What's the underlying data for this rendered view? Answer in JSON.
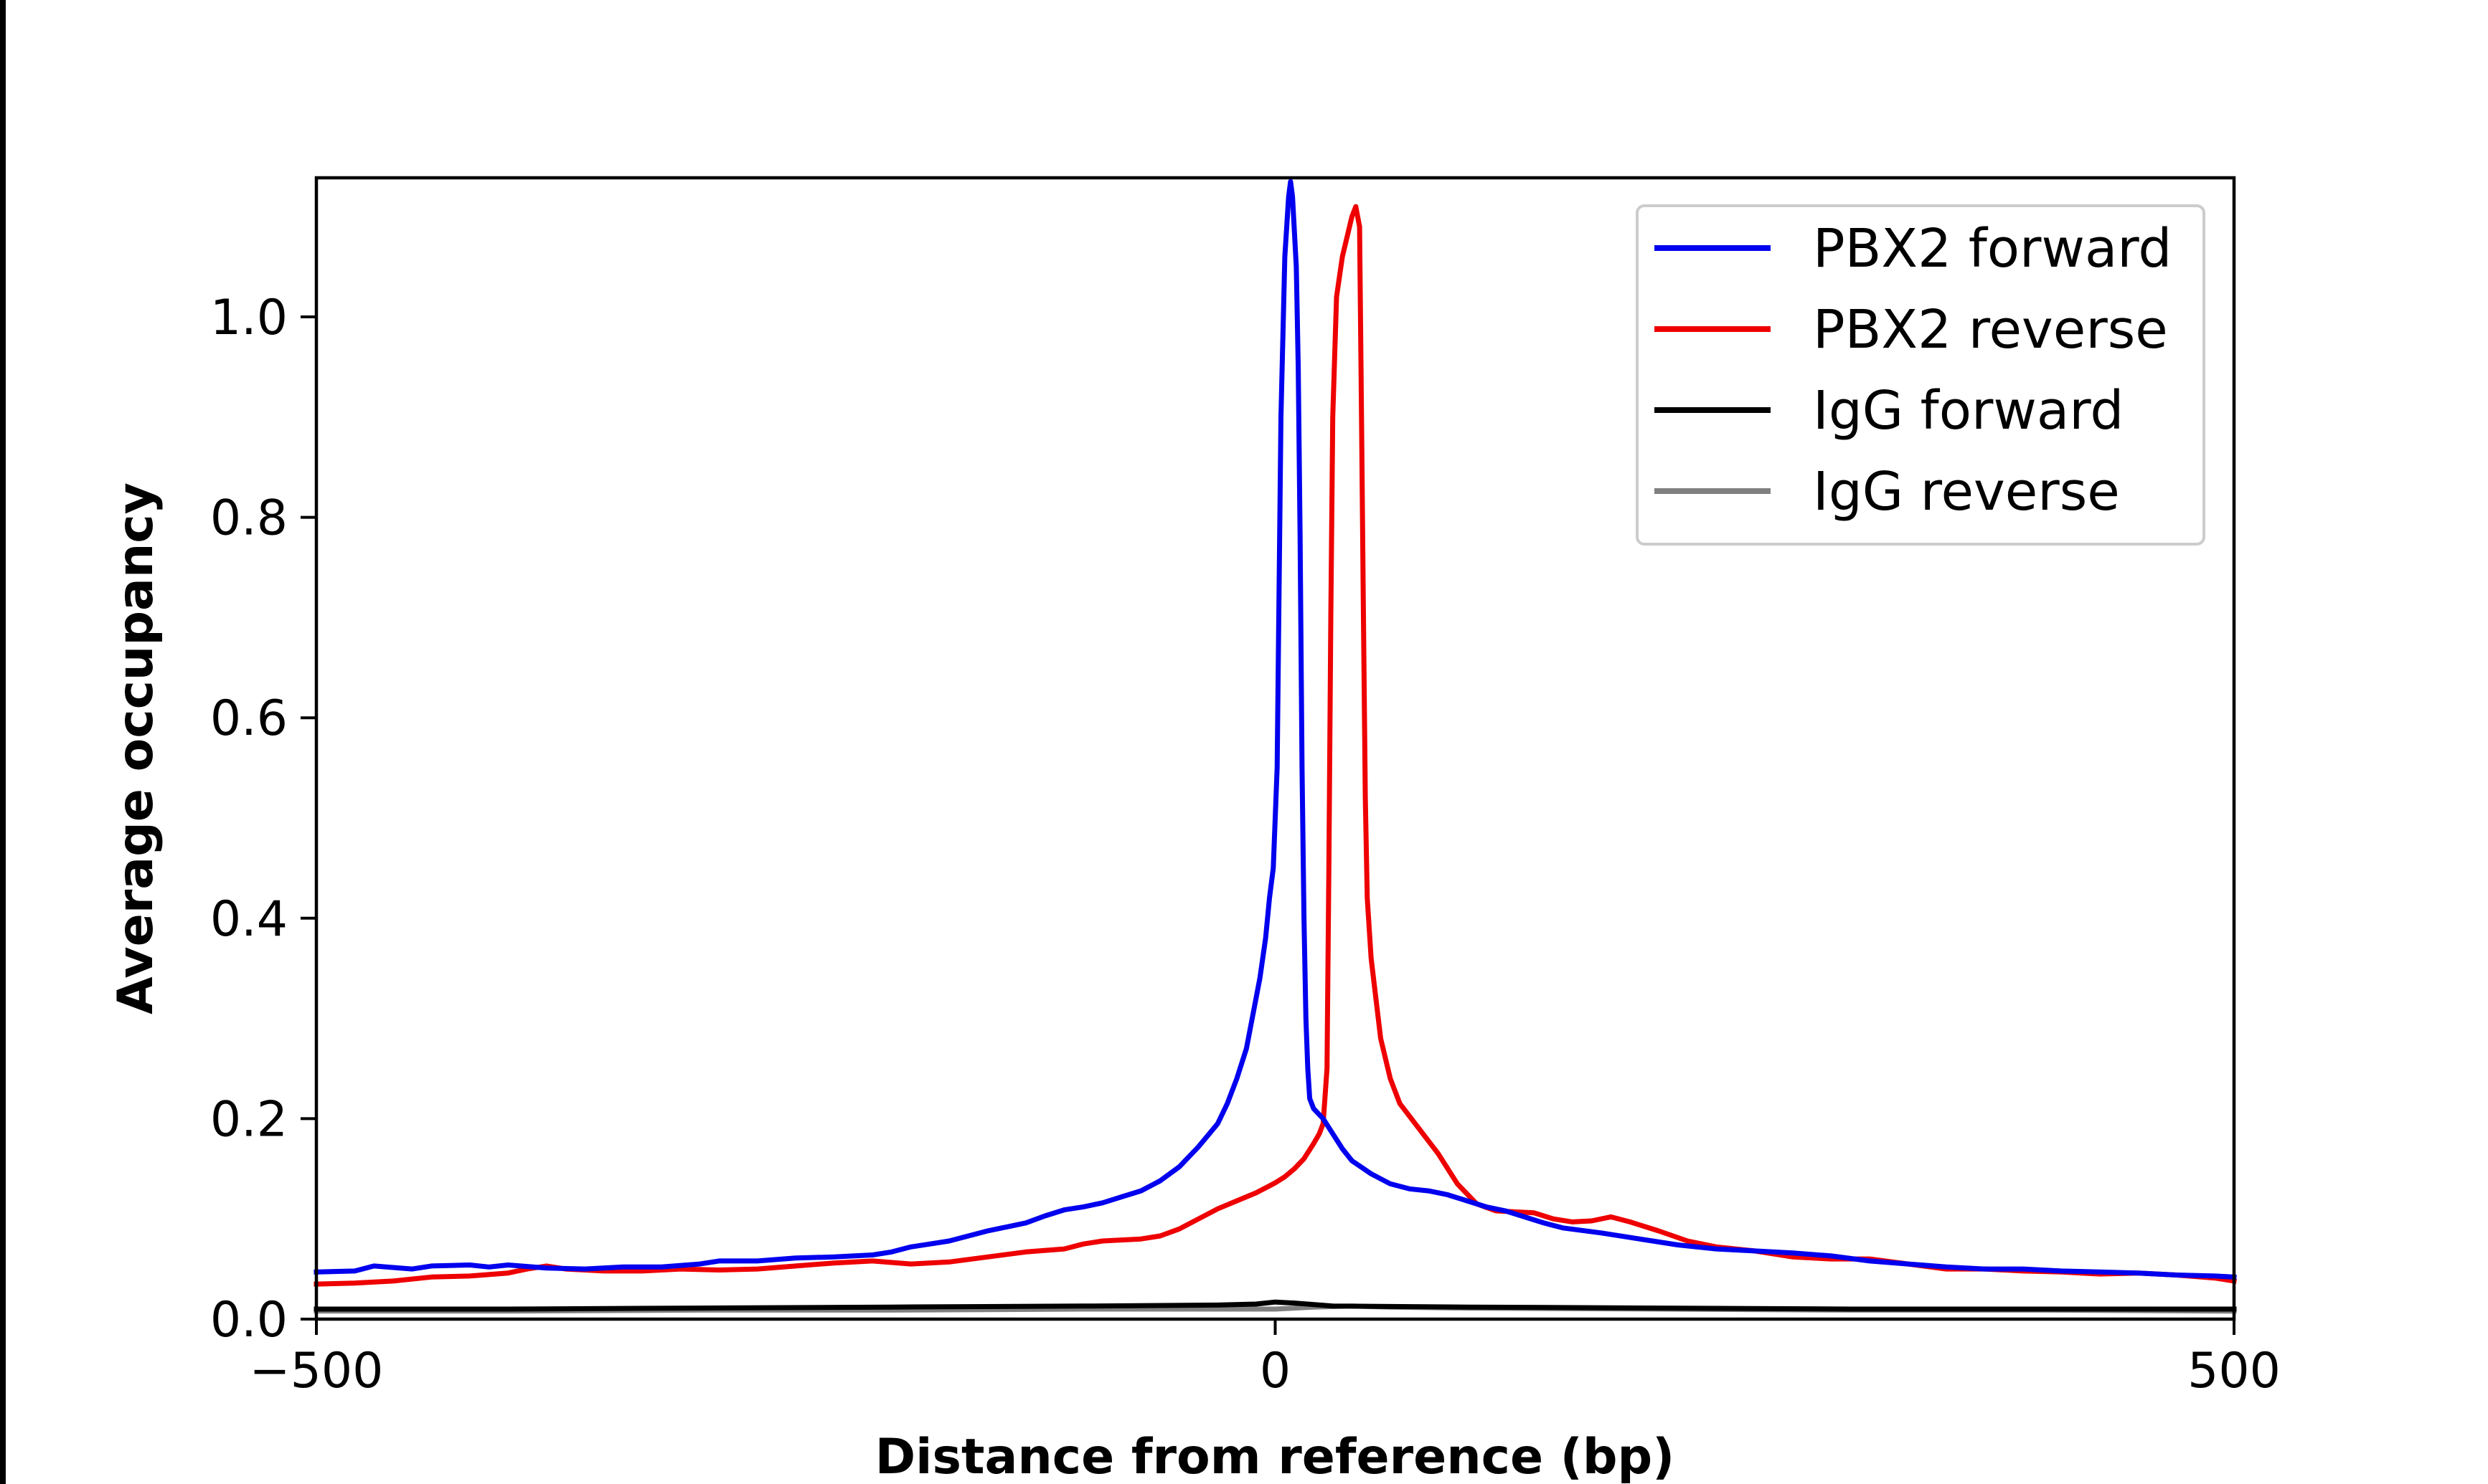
{
  "chart_data": {
    "type": "line",
    "title": "",
    "xlabel": "Distance from reference (bp)",
    "ylabel": "Average occupancy",
    "xlim": [
      -500,
      500
    ],
    "ylim": [
      0.0,
      1.13
    ],
    "xticks": [
      -500,
      0,
      500
    ],
    "xtick_labels": [
      "−500",
      "0",
      "500"
    ],
    "yticks": [
      0.0,
      0.2,
      0.4,
      0.6,
      0.8,
      1.0
    ],
    "ytick_labels": [
      "0.0",
      "0.2",
      "0.4",
      "0.6",
      "0.8",
      "1.0"
    ],
    "grid": false,
    "legend_position": "top-right",
    "series": [
      {
        "name": "PBX2 forward",
        "color": "#0000ee",
        "points": [
          [
            -500,
            0.047
          ],
          [
            -480,
            0.048
          ],
          [
            -470,
            0.053
          ],
          [
            -450,
            0.05
          ],
          [
            -440,
            0.053
          ],
          [
            -420,
            0.054
          ],
          [
            -410,
            0.052
          ],
          [
            -400,
            0.054
          ],
          [
            -380,
            0.051
          ],
          [
            -360,
            0.05
          ],
          [
            -340,
            0.052
          ],
          [
            -320,
            0.052
          ],
          [
            -300,
            0.055
          ],
          [
            -290,
            0.058
          ],
          [
            -270,
            0.058
          ],
          [
            -250,
            0.061
          ],
          [
            -230,
            0.062
          ],
          [
            -210,
            0.064
          ],
          [
            -200,
            0.067
          ],
          [
            -190,
            0.072
          ],
          [
            -180,
            0.075
          ],
          [
            -170,
            0.078
          ],
          [
            -160,
            0.083
          ],
          [
            -150,
            0.088
          ],
          [
            -140,
            0.092
          ],
          [
            -130,
            0.096
          ],
          [
            -120,
            0.103
          ],
          [
            -110,
            0.109
          ],
          [
            -100,
            0.112
          ],
          [
            -90,
            0.116
          ],
          [
            -80,
            0.122
          ],
          [
            -70,
            0.128
          ],
          [
            -60,
            0.138
          ],
          [
            -50,
            0.152
          ],
          [
            -40,
            0.172
          ],
          [
            -30,
            0.195
          ],
          [
            -25,
            0.215
          ],
          [
            -20,
            0.24
          ],
          [
            -15,
            0.27
          ],
          [
            -12,
            0.3
          ],
          [
            -8,
            0.34
          ],
          [
            -5,
            0.38
          ],
          [
            -3,
            0.42
          ],
          [
            -1,
            0.45
          ],
          [
            1,
            0.55
          ],
          [
            3,
            0.9
          ],
          [
            5,
            1.06
          ],
          [
            7,
            1.12
          ],
          [
            8,
            1.135
          ],
          [
            9,
            1.12
          ],
          [
            11,
            1.05
          ],
          [
            12,
            0.95
          ],
          [
            13,
            0.78
          ],
          [
            14,
            0.55
          ],
          [
            15,
            0.4
          ],
          [
            16,
            0.3
          ],
          [
            17,
            0.25
          ],
          [
            18,
            0.22
          ],
          [
            20,
            0.21
          ],
          [
            25,
            0.2
          ],
          [
            30,
            0.185
          ],
          [
            35,
            0.17
          ],
          [
            40,
            0.158
          ],
          [
            50,
            0.145
          ],
          [
            60,
            0.135
          ],
          [
            70,
            0.13
          ],
          [
            80,
            0.128
          ],
          [
            90,
            0.124
          ],
          [
            100,
            0.118
          ],
          [
            110,
            0.112
          ],
          [
            120,
            0.108
          ],
          [
            130,
            0.102
          ],
          [
            140,
            0.096
          ],
          [
            150,
            0.091
          ],
          [
            170,
            0.086
          ],
          [
            190,
            0.08
          ],
          [
            210,
            0.074
          ],
          [
            230,
            0.07
          ],
          [
            250,
            0.068
          ],
          [
            270,
            0.066
          ],
          [
            290,
            0.063
          ],
          [
            310,
            0.058
          ],
          [
            330,
            0.055
          ],
          [
            350,
            0.052
          ],
          [
            370,
            0.05
          ],
          [
            390,
            0.05
          ],
          [
            410,
            0.048
          ],
          [
            430,
            0.047
          ],
          [
            450,
            0.046
          ],
          [
            470,
            0.044
          ],
          [
            490,
            0.043
          ],
          [
            500,
            0.042
          ]
        ]
      },
      {
        "name": "PBX2 reverse",
        "color": "#ee0000",
        "points": [
          [
            -500,
            0.035
          ],
          [
            -480,
            0.036
          ],
          [
            -460,
            0.038
          ],
          [
            -440,
            0.042
          ],
          [
            -420,
            0.043
          ],
          [
            -400,
            0.046
          ],
          [
            -390,
            0.05
          ],
          [
            -380,
            0.053
          ],
          [
            -370,
            0.05
          ],
          [
            -350,
            0.048
          ],
          [
            -330,
            0.048
          ],
          [
            -310,
            0.05
          ],
          [
            -290,
            0.049
          ],
          [
            -270,
            0.05
          ],
          [
            -250,
            0.053
          ],
          [
            -230,
            0.056
          ],
          [
            -210,
            0.058
          ],
          [
            -190,
            0.055
          ],
          [
            -170,
            0.057
          ],
          [
            -150,
            0.062
          ],
          [
            -130,
            0.067
          ],
          [
            -110,
            0.07
          ],
          [
            -100,
            0.075
          ],
          [
            -90,
            0.078
          ],
          [
            -80,
            0.079
          ],
          [
            -70,
            0.08
          ],
          [
            -60,
            0.083
          ],
          [
            -50,
            0.09
          ],
          [
            -40,
            0.1
          ],
          [
            -30,
            0.11
          ],
          [
            -20,
            0.118
          ],
          [
            -10,
            0.126
          ],
          [
            0,
            0.136
          ],
          [
            5,
            0.142
          ],
          [
            10,
            0.15
          ],
          [
            15,
            0.16
          ],
          [
            20,
            0.175
          ],
          [
            23,
            0.185
          ],
          [
            25,
            0.195
          ],
          [
            27,
            0.25
          ],
          [
            28,
            0.45
          ],
          [
            29,
            0.7
          ],
          [
            30,
            0.9
          ],
          [
            32,
            1.02
          ],
          [
            35,
            1.06
          ],
          [
            40,
            1.1
          ],
          [
            42,
            1.11
          ],
          [
            44,
            1.09
          ],
          [
            45,
            0.9
          ],
          [
            46,
            0.7
          ],
          [
            47,
            0.52
          ],
          [
            48,
            0.42
          ],
          [
            50,
            0.36
          ],
          [
            55,
            0.28
          ],
          [
            60,
            0.24
          ],
          [
            65,
            0.215
          ],
          [
            75,
            0.19
          ],
          [
            85,
            0.165
          ],
          [
            95,
            0.135
          ],
          [
            105,
            0.115
          ],
          [
            115,
            0.108
          ],
          [
            125,
            0.107
          ],
          [
            135,
            0.106
          ],
          [
            145,
            0.1
          ],
          [
            155,
            0.097
          ],
          [
            165,
            0.098
          ],
          [
            175,
            0.102
          ],
          [
            185,
            0.097
          ],
          [
            200,
            0.088
          ],
          [
            215,
            0.078
          ],
          [
            230,
            0.072
          ],
          [
            250,
            0.068
          ],
          [
            270,
            0.062
          ],
          [
            290,
            0.06
          ],
          [
            310,
            0.06
          ],
          [
            330,
            0.055
          ],
          [
            350,
            0.05
          ],
          [
            370,
            0.05
          ],
          [
            390,
            0.048
          ],
          [
            410,
            0.047
          ],
          [
            430,
            0.045
          ],
          [
            450,
            0.046
          ],
          [
            470,
            0.044
          ],
          [
            490,
            0.041
          ],
          [
            500,
            0.038
          ]
        ]
      },
      {
        "name": "IgG forward",
        "color": "#000000",
        "points": [
          [
            -500,
            0.01
          ],
          [
            -400,
            0.01
          ],
          [
            -300,
            0.011
          ],
          [
            -200,
            0.012
          ],
          [
            -100,
            0.013
          ],
          [
            -30,
            0.014
          ],
          [
            -10,
            0.015
          ],
          [
            0,
            0.017
          ],
          [
            10,
            0.016
          ],
          [
            30,
            0.013
          ],
          [
            100,
            0.012
          ],
          [
            200,
            0.011
          ],
          [
            300,
            0.01
          ],
          [
            400,
            0.01
          ],
          [
            500,
            0.01
          ]
        ]
      },
      {
        "name": "IgG reverse",
        "color": "#808080",
        "points": [
          [
            -500,
            0.008
          ],
          [
            -400,
            0.008
          ],
          [
            -300,
            0.009
          ],
          [
            -200,
            0.009
          ],
          [
            -100,
            0.01
          ],
          [
            0,
            0.01
          ],
          [
            20,
            0.012
          ],
          [
            40,
            0.013
          ],
          [
            60,
            0.012
          ],
          [
            100,
            0.011
          ],
          [
            200,
            0.01
          ],
          [
            300,
            0.009
          ],
          [
            400,
            0.009
          ],
          [
            500,
            0.008
          ]
        ]
      }
    ]
  }
}
